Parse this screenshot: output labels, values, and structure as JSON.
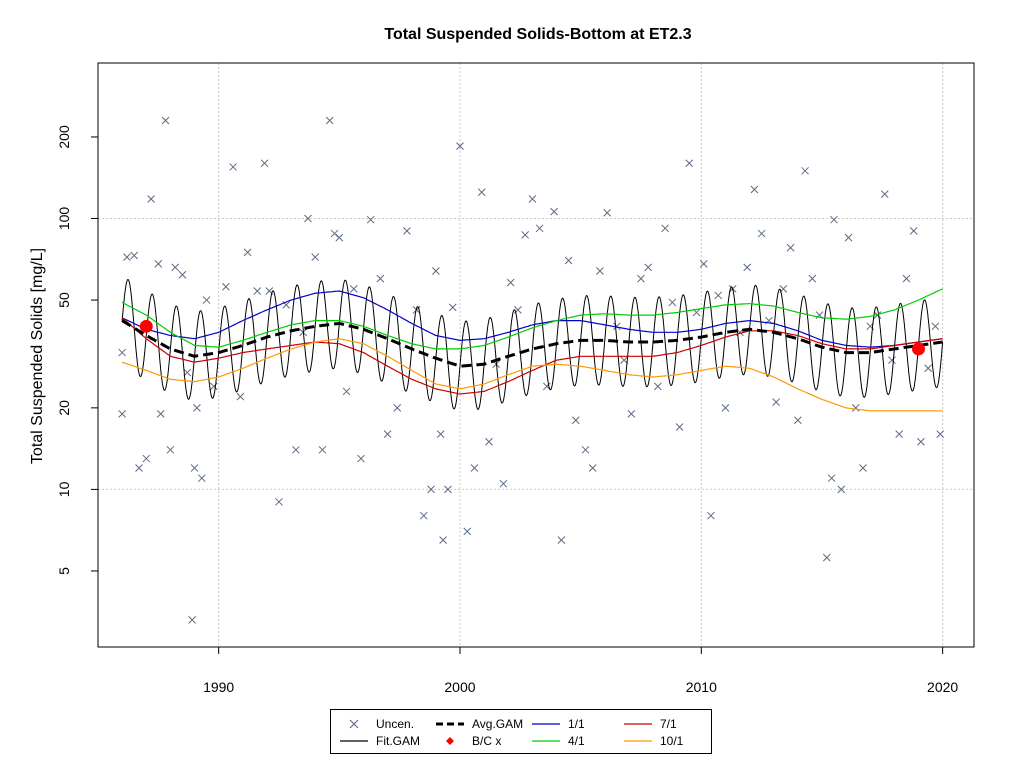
{
  "chart_data": {
    "type": "line",
    "title": "Total Suspended Solids-Bottom at ET2.3",
    "xlabel": "",
    "ylabel": "Total Suspended Solids [mg/L]",
    "xlim": [
      1985,
      2021.3
    ],
    "ylim": [
      2.62,
      375
    ],
    "y_scale": "log",
    "x_ticks": [
      1990,
      2000,
      2010,
      2020
    ],
    "x_tick_labels": [
      "1990",
      "2000",
      "2010",
      "2020"
    ],
    "y_ticks": [
      5,
      10,
      20,
      50,
      100,
      200
    ],
    "y_tick_labels": [
      "5",
      "10",
      "20",
      "50",
      "100",
      "200"
    ],
    "grid": true,
    "legend_position": "bottom",
    "colors": {
      "uncen": "#5b6b84",
      "fit_gam": "#000000",
      "avg_gam": "#000000",
      "bc": "#ff0000",
      "s1_1": "#0000cc",
      "s4_1": "#00cc00",
      "s7_1": "#cc0000",
      "s10_1": "#ff9900"
    },
    "legend": [
      {
        "key": "uncen",
        "label": "Uncen."
      },
      {
        "key": "fit_gam",
        "label": "Fit.GAM"
      },
      {
        "key": "avg_gam",
        "label": "Avg.GAM"
      },
      {
        "key": "bc",
        "label": "B/C x"
      },
      {
        "key": "s1_1",
        "label": "1/1"
      },
      {
        "key": "s4_1",
        "label": "4/1"
      },
      {
        "key": "s7_1",
        "label": "7/1"
      },
      {
        "key": "s10_1",
        "label": "10/1"
      }
    ],
    "series": [
      {
        "name": "Avg.GAM",
        "x": [
          1986,
          1987,
          1988,
          1989,
          1990,
          1991,
          1992,
          1993,
          1994,
          1995,
          1996,
          1997,
          1998,
          1999,
          2000,
          2001,
          2002,
          2003,
          2004,
          2005,
          2006,
          2007,
          2008,
          2009,
          2010,
          2011,
          2012,
          2013,
          2014,
          2015,
          2016,
          2017,
          2018,
          2019,
          2020
        ],
        "y": [
          42,
          37,
          33,
          31,
          32,
          34,
          36.5,
          38.5,
          40,
          41,
          39,
          36,
          33,
          30.5,
          28.5,
          29,
          31,
          33,
          34.5,
          35.5,
          35.5,
          35,
          35,
          35.5,
          36.5,
          38,
          39,
          38,
          36,
          33.5,
          32,
          32,
          33,
          34,
          35
        ]
      },
      {
        "name": "1/1",
        "x": [
          1986,
          1987,
          1988,
          1989,
          1990,
          1991,
          1992,
          1993,
          1994,
          1995,
          1996,
          1997,
          1998,
          1999,
          2000,
          2001,
          2002,
          2003,
          2004,
          2005,
          2006,
          2007,
          2008,
          2009,
          2010,
          2011,
          2012,
          2013,
          2014,
          2015,
          2016,
          2017,
          2018,
          2019,
          2020
        ],
        "y": [
          43,
          39,
          37,
          36,
          38,
          42,
          46,
          50,
          53,
          54,
          51,
          46,
          41,
          37,
          35.5,
          36,
          38,
          40.5,
          42,
          42,
          40.5,
          39,
          38,
          38,
          39,
          41,
          42,
          41,
          38.5,
          35.5,
          34,
          33.5,
          34,
          35,
          36
        ]
      },
      {
        "name": "4/1",
        "x": [
          1986,
          1987,
          1988,
          1989,
          1990,
          1991,
          1992,
          1993,
          1994,
          1995,
          1996,
          1997,
          1998,
          1999,
          2000,
          2001,
          2002,
          2003,
          2004,
          2005,
          2006,
          2007,
          2008,
          2009,
          2010,
          2011,
          2012,
          2013,
          2014,
          2015,
          2016,
          2017,
          2018,
          2019,
          2020
        ],
        "y": [
          49,
          44,
          38,
          34,
          33.5,
          35.5,
          38,
          40.5,
          42,
          42,
          40,
          37,
          34.5,
          33,
          33,
          34,
          36.5,
          39.5,
          42,
          44,
          44.5,
          44,
          44,
          45,
          46.5,
          48,
          48.5,
          47.5,
          45,
          43,
          42.5,
          43.5,
          46,
          50,
          55
        ]
      },
      {
        "name": "7/1",
        "x": [
          1986,
          1987,
          1988,
          1989,
          1990,
          1991,
          1992,
          1993,
          1994,
          1995,
          1996,
          1997,
          1998,
          1999,
          2000,
          2001,
          2002,
          2003,
          2004,
          2005,
          2006,
          2007,
          2008,
          2009,
          2010,
          2011,
          2012,
          2013,
          2014,
          2015,
          2016,
          2017,
          2018,
          2019,
          2020
        ],
        "y": [
          43,
          36,
          31,
          29.5,
          30.5,
          32,
          33,
          34,
          35,
          34.5,
          32,
          28.5,
          25.5,
          23.5,
          22.5,
          23,
          25,
          27.5,
          30,
          31,
          31,
          31,
          31,
          32,
          34,
          36.5,
          38.5,
          38.5,
          37,
          34.5,
          33,
          33,
          34,
          35,
          36
        ]
      },
      {
        "name": "10/1",
        "x": [
          1986,
          1987,
          1988,
          1989,
          1990,
          1991,
          1992,
          1993,
          1994,
          1995,
          1996,
          1997,
          1998,
          1999,
          2000,
          2001,
          2002,
          2003,
          2004,
          2005,
          2006,
          2007,
          2008,
          2009,
          2010,
          2011,
          2012,
          2013,
          2014,
          2015,
          2016,
          2017,
          2018,
          2019,
          2020
        ],
        "y": [
          29.5,
          27.5,
          25.5,
          25,
          26,
          28,
          30.5,
          33,
          35,
          36,
          34.5,
          31,
          27.5,
          24.5,
          23.5,
          24.5,
          26.5,
          28.5,
          29,
          28.5,
          27.5,
          26.5,
          26,
          26.5,
          27.5,
          28.5,
          28,
          26,
          23.5,
          21.5,
          20,
          19.5,
          19.5,
          19.5,
          19.5
        ]
      },
      {
        "name": "Fit.GAM",
        "amplitude": 0.38,
        "cycles_per_year": 1,
        "x_range": [
          1986,
          2020
        ],
        "center": "Avg.GAM"
      },
      {
        "name": "B/C x",
        "x": [
          1987,
          2019
        ],
        "y": [
          40,
          33
        ]
      },
      {
        "name": "Uncen.",
        "x": [
          1986,
          1986,
          1986.2,
          1986.5,
          1986.7,
          1987,
          1987.2,
          1987.5,
          1987.6,
          1987.8,
          1988,
          1988.2,
          1988.5,
          1988.7,
          1989,
          1989.1,
          1989.3,
          1989.5,
          1989.8,
          1990.3,
          1990.6,
          1990.9,
          1991.2,
          1991.6,
          1991.9,
          1992.1,
          1992.5,
          1992.8,
          1993.2,
          1993.5,
          1993.7,
          1994,
          1994.3,
          1994.6,
          1994.8,
          1995,
          1995.3,
          1995.6,
          1995.9,
          1996.3,
          1996.7,
          1997,
          1997.4,
          1997.8,
          1998.2,
          1998.5,
          1998.8,
          1999,
          1999.2,
          1999.5,
          1999.7,
          2000,
          2000.3,
          2000.6,
          2000.9,
          2001.2,
          2001.5,
          2001.8,
          2002.1,
          2002.4,
          2002.7,
          2003,
          2003.3,
          2003.6,
          2003.9,
          2004.2,
          2004.5,
          2004.8,
          2005.2,
          2005.5,
          2005.8,
          2006.1,
          2006.5,
          2006.8,
          2007.1,
          2007.5,
          2007.8,
          2008.2,
          2008.5,
          2008.8,
          2009.1,
          2009.5,
          2009.8,
          2010.1,
          2010.4,
          2010.7,
          2011,
          2011.3,
          2011.6,
          2011.9,
          2012.2,
          2012.5,
          2012.8,
          2013.1,
          2013.4,
          2013.7,
          2014,
          2014.3,
          2014.6,
          2014.9,
          2015.2,
          2015.5,
          2015.8,
          2016.1,
          2016.4,
          2016.7,
          2017,
          2017.3,
          2017.6,
          2017.9,
          2018.2,
          2018.5,
          2018.8,
          2019.1,
          2019.4,
          2019.7,
          2019.9,
          1988.9,
          1999.3,
          2015.4
        ],
        "y": [
          32,
          19,
          72,
          73,
          12,
          13,
          118,
          68,
          19,
          230,
          14,
          66,
          62,
          27,
          12,
          20,
          11,
          50,
          24,
          56,
          155,
          22,
          75,
          54,
          160,
          54,
          9,
          48,
          14,
          38,
          100,
          72,
          14,
          230,
          88,
          85,
          23,
          55,
          13,
          99,
          60,
          16,
          20,
          90,
          46,
          8,
          10,
          64,
          16,
          10,
          47,
          185,
          7,
          12,
          125,
          15,
          29,
          10.5,
          58,
          46,
          87,
          118,
          92,
          24,
          106,
          6.5,
          70,
          18,
          14,
          12,
          64,
          105,
          40,
          30,
          19,
          60,
          66,
          24,
          92,
          49,
          17,
          160,
          45,
          68,
          8,
          52,
          20,
          55,
          38,
          66,
          128,
          88,
          42,
          21,
          55,
          78,
          18,
          150,
          60,
          44,
          5.6,
          99,
          10,
          85,
          20,
          12,
          40,
          44,
          123,
          30,
          16,
          60,
          90,
          15,
          28,
          40,
          16,
          3.3,
          6.5,
          11
        ]
      }
    ]
  }
}
